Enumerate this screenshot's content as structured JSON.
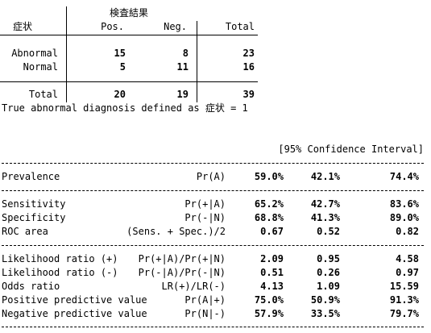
{
  "crosstab": {
    "header_top": "検査結果",
    "row_var": "症状",
    "col_pos": "Pos.",
    "col_neg": "Neg.",
    "col_total": "Total",
    "rows": [
      {
        "label": "Abnormal",
        "pos": "15",
        "neg": "8",
        "total": "23"
      },
      {
        "label": "Normal",
        "pos": "5",
        "neg": "11",
        "total": "16"
      }
    ],
    "total_row": {
      "label": "Total",
      "pos": "20",
      "neg": "19",
      "total": "39"
    },
    "note": "True abnormal diagnosis defined as 症状 = 1"
  },
  "stats": {
    "ci_header": "[95% Confidence Interval]",
    "rows": [
      {
        "label": "Prevalence",
        "formula": "Pr(A)",
        "est": "59.0%",
        "lo": "42.1%",
        "hi": "74.4%"
      },
      {
        "label": "Sensitivity",
        "formula": "Pr(+|A)",
        "est": "65.2%",
        "lo": "42.7%",
        "hi": "83.6%"
      },
      {
        "label": "Specificity",
        "formula": "Pr(-|N)",
        "est": "68.8%",
        "lo": "41.3%",
        "hi": "89.0%"
      },
      {
        "label": "ROC area",
        "formula": "(Sens. + Spec.)/2",
        "est": "0.67",
        "lo": "0.52",
        "hi": "0.82"
      },
      {
        "label": "Likelihood ratio (+)",
        "formula": "Pr(+|A)/Pr(+|N)",
        "est": "2.09",
        "lo": "0.95",
        "hi": "4.58"
      },
      {
        "label": "Likelihood ratio (-)",
        "formula": "Pr(-|A)/Pr(-|N)",
        "est": "0.51",
        "lo": "0.26",
        "hi": "0.97"
      },
      {
        "label": "Odds ratio",
        "formula": "LR(+)/LR(-)",
        "est": "4.13",
        "lo": "1.09",
        "hi": "15.59"
      },
      {
        "label": "Positive predictive value",
        "formula": "Pr(A|+)",
        "est": "75.0%",
        "lo": "50.9%",
        "hi": "91.3%"
      },
      {
        "label": "Negative predictive value",
        "formula": "Pr(N|-)",
        "est": "57.9%",
        "lo": "33.5%",
        "hi": "79.7%"
      }
    ]
  }
}
